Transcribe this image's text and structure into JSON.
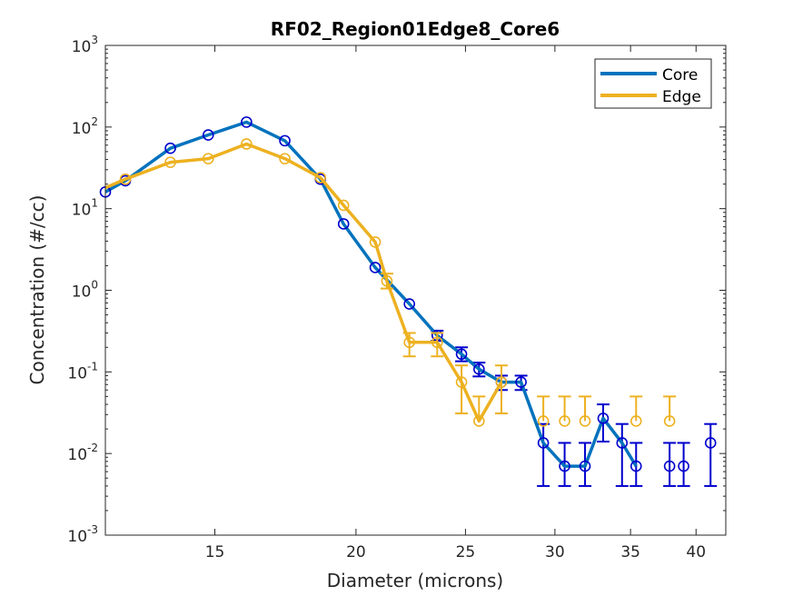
{
  "chart_data": {
    "type": "line",
    "title": "RF02_Region01Edge8_Core6",
    "xlabel": "Diameter (microns)",
    "ylabel": "Concentration (#/cc)",
    "x_scale": "log",
    "y_scale": "log",
    "xlim": [
      12,
      42.5
    ],
    "ylim": [
      0.001,
      1000
    ],
    "x_ticks": [
      15,
      20,
      25,
      30,
      35,
      40
    ],
    "x_tick_labels": [
      "15",
      "20",
      "25",
      "30",
      "35",
      "40"
    ],
    "y_ticks": [
      0.001,
      0.01,
      0.1,
      1,
      10,
      100,
      1000
    ],
    "y_tick_labels": [
      {
        "base": "10",
        "exp": "-3"
      },
      {
        "base": "10",
        "exp": "-2"
      },
      {
        "base": "10",
        "exp": "-1"
      },
      {
        "base": "10",
        "exp": "0"
      },
      {
        "base": "10",
        "exp": "1"
      },
      {
        "base": "10",
        "exp": "2"
      },
      {
        "base": "10",
        "exp": "3"
      }
    ],
    "legend_position": "top-right",
    "grid": false,
    "series": [
      {
        "name": "Core",
        "color": "#0072BD",
        "marker_color": "#0000CD",
        "x": [
          12.0,
          12.5,
          13.7,
          14.8,
          16.0,
          17.3,
          18.6,
          19.5,
          20.8,
          22.3,
          23.6,
          24.8,
          25.7,
          26.9,
          28.0,
          29.3,
          30.6,
          31.9,
          33.1,
          34.4,
          35.4,
          37.9,
          39.0,
          41.2
        ],
        "y": [
          16,
          22,
          55,
          80,
          115,
          68,
          23,
          6.5,
          1.9,
          0.68,
          0.28,
          0.165,
          0.108,
          0.075,
          0.075,
          0.0135,
          0.007,
          0.007,
          0.027,
          0.0135,
          0.007,
          0.007,
          0.007,
          0.0135
        ],
        "markers": [
          true,
          true,
          true,
          true,
          true,
          true,
          true,
          true,
          true,
          true,
          true,
          true,
          true,
          true,
          true,
          true,
          true,
          true,
          true,
          true,
          true,
          true,
          true,
          true
        ],
        "line": [
          true,
          true,
          true,
          true,
          true,
          true,
          true,
          true,
          true,
          true,
          true,
          true,
          true,
          true,
          true,
          true,
          true,
          true,
          true,
          true,
          true,
          false,
          false,
          false
        ],
        "err_low": [
          null,
          null,
          null,
          null,
          null,
          null,
          null,
          null,
          null,
          null,
          0.24,
          0.135,
          0.088,
          0.06,
          0.06,
          0.004,
          0.004,
          0.004,
          0.014,
          0.004,
          0.004,
          0.004,
          0.004,
          0.004
        ],
        "err_high": [
          null,
          null,
          null,
          null,
          null,
          null,
          null,
          null,
          null,
          null,
          0.32,
          0.2,
          0.13,
          0.09,
          0.09,
          0.023,
          0.0135,
          0.0135,
          0.04,
          0.023,
          0.0135,
          0.0135,
          0.0135,
          0.023
        ]
      },
      {
        "name": "Edge",
        "color": "#EDB120",
        "marker_color": "#EDB120",
        "x": [
          12.0,
          12.5,
          13.7,
          14.8,
          16.0,
          17.3,
          18.6,
          19.5,
          20.8,
          21.3,
          22.3,
          23.6,
          24.8,
          25.7,
          26.9,
          28.0,
          29.3,
          30.6,
          31.9,
          33.1,
          34.4,
          35.4,
          37.9
        ],
        "y": [
          18,
          23,
          37,
          41,
          62,
          41,
          24,
          11,
          3.9,
          1.3,
          0.23,
          0.23,
          0.075,
          0.025,
          0.075,
          0.075,
          0.025,
          0.025,
          0.025,
          0.025,
          0.025,
          0.025,
          0.025
        ],
        "markers": [
          false,
          true,
          true,
          true,
          true,
          true,
          true,
          true,
          true,
          true,
          true,
          true,
          true,
          true,
          true,
          false,
          true,
          true,
          true,
          false,
          false,
          true,
          true
        ],
        "line": [
          true,
          true,
          true,
          true,
          true,
          true,
          true,
          true,
          true,
          true,
          true,
          true,
          true,
          true,
          true,
          false,
          false,
          false,
          false,
          false,
          false,
          false,
          false
        ],
        "err_low": [
          null,
          null,
          null,
          null,
          null,
          null,
          null,
          null,
          null,
          1.05,
          0.155,
          0.155,
          0.031,
          null,
          0.031,
          null,
          null,
          null,
          null,
          null,
          null,
          null,
          null
        ],
        "err_high": [
          null,
          null,
          null,
          null,
          null,
          null,
          null,
          null,
          null,
          1.6,
          0.3,
          0.3,
          0.12,
          0.05,
          0.12,
          null,
          0.05,
          0.05,
          0.05,
          null,
          null,
          0.05,
          0.05
        ]
      }
    ]
  }
}
